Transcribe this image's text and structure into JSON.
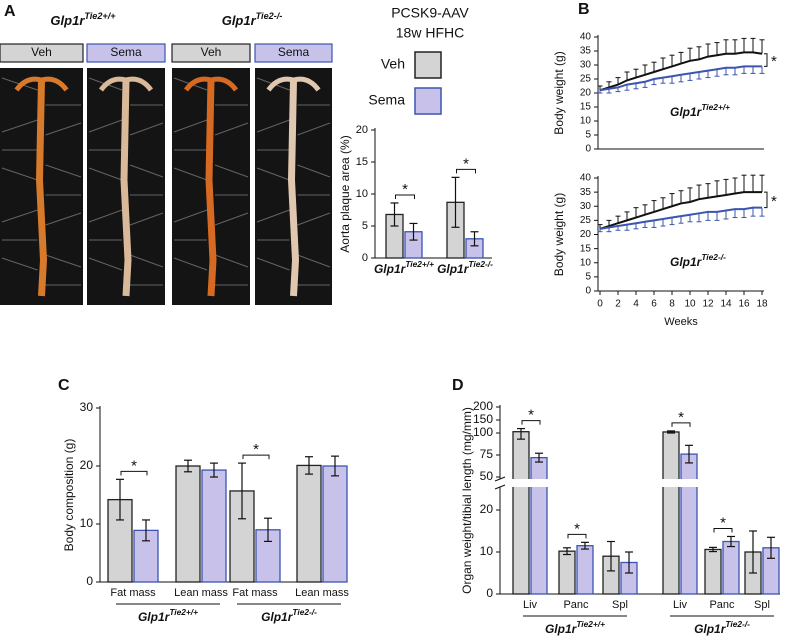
{
  "panel_labels": [
    "A",
    "B",
    "C",
    "D"
  ],
  "genotypes": [
    {
      "base": "Glp1r",
      "sup": "Tie2+/+"
    },
    {
      "base": "Glp1r",
      "sup": "Tie2-/-"
    }
  ],
  "photo_labels": [
    "Veh",
    "Sema",
    "Veh",
    "Sema"
  ],
  "legend_title": [
    "PCSK9-AAV",
    "18w HFHC"
  ],
  "chart_data": [
    {
      "type": "bar",
      "y_label": "Aorta plaque area (%)",
      "ylim": [
        0,
        20
      ],
      "yticks": [
        0,
        5,
        10,
        15,
        20
      ],
      "series": [
        {
          "name": "Veh",
          "color": "#d4d4d4",
          "edge": "#222222",
          "values": [
            6.8,
            8.7
          ],
          "errors": [
            1.8,
            3.9
          ]
        },
        {
          "name": "Sema",
          "color": "#c8c2ea",
          "edge": "#3b55b0",
          "values": [
            4.1,
            3.0
          ],
          "errors": [
            1.3,
            1.1
          ]
        }
      ],
      "significance": [
        "*",
        "*"
      ]
    },
    {
      "type": "line",
      "y_label": "Body weight (g)",
      "ylim": [
        0,
        40
      ],
      "yticks": [
        0,
        5,
        10,
        15,
        20,
        25,
        30,
        35,
        40
      ],
      "xlim": [
        0,
        18
      ],
      "x": [
        0,
        1,
        2,
        3,
        4,
        5,
        6,
        7,
        8,
        9,
        10,
        11,
        12,
        13,
        14,
        15,
        16,
        17,
        18
      ],
      "series": [
        {
          "name": "Veh",
          "color": "#111111",
          "error_direction": "up",
          "values": [
            21,
            22,
            23,
            24.5,
            25.5,
            26.5,
            27.5,
            28.5,
            29.5,
            30.5,
            31.5,
            32,
            33,
            33.5,
            34,
            34,
            34.5,
            34.5,
            34
          ],
          "errors": [
            1.5,
            2,
            2.5,
            3,
            3,
            3.5,
            3.5,
            4,
            4,
            4,
            4.5,
            4.5,
            4.5,
            4.5,
            5,
            5,
            5,
            5,
            5
          ]
        },
        {
          "name": "Sema",
          "color": "#3b55b0",
          "error_direction": "down",
          "values": [
            21,
            21.5,
            22,
            23,
            23.5,
            24,
            25,
            25.5,
            26,
            26.5,
            27,
            27.5,
            28,
            28.5,
            29,
            29,
            29.5,
            29.5,
            29.5
          ],
          "errors": [
            1,
            1.5,
            1.5,
            2,
            2,
            2,
            2,
            2,
            2.5,
            2.5,
            2.5,
            2.5,
            2.5,
            2.5,
            2.5,
            2.5,
            2.5,
            2.5,
            2.5
          ]
        }
      ],
      "significance": "*"
    },
    {
      "type": "line",
      "y_label": "Body weight (g)",
      "x_label": "Weeks",
      "ylim": [
        0,
        40
      ],
      "yticks": [
        0,
        5,
        10,
        15,
        20,
        25,
        30,
        35,
        40
      ],
      "xlim": [
        0,
        18
      ],
      "xticks": [
        0,
        2,
        4,
        6,
        8,
        10,
        12,
        14,
        16,
        18
      ],
      "x": [
        0,
        1,
        2,
        3,
        4,
        5,
        6,
        7,
        8,
        9,
        10,
        11,
        12,
        13,
        14,
        15,
        16,
        17,
        18
      ],
      "series": [
        {
          "name": "Veh",
          "color": "#111111",
          "error_direction": "up",
          "values": [
            22,
            23,
            24,
            25,
            26,
            27,
            28,
            29,
            30,
            31,
            31.5,
            32.5,
            33,
            33.5,
            34,
            34.5,
            35,
            35,
            35
          ],
          "errors": [
            1.5,
            2,
            2.5,
            3,
            3.5,
            3.5,
            4,
            4,
            4.5,
            4.5,
            5,
            5,
            5,
            5.5,
            5.5,
            5.5,
            6,
            6,
            6
          ]
        },
        {
          "name": "Sema",
          "color": "#3b55b0",
          "error_direction": "down",
          "values": [
            22,
            22.5,
            23,
            23.5,
            24,
            24.5,
            25,
            25.5,
            26,
            26.5,
            27,
            27.5,
            28,
            28,
            28.5,
            29,
            29,
            29.5,
            29.5
          ],
          "errors": [
            1,
            1.5,
            1.5,
            2,
            2,
            2,
            2.5,
            2.5,
            2.5,
            2.5,
            2.5,
            3,
            3,
            3,
            3,
            3,
            3,
            3,
            3
          ]
        }
      ],
      "significance": "*"
    },
    {
      "type": "bar",
      "y_label": "Body composition (g)",
      "ylim": [
        0,
        30
      ],
      "yticks": [
        0,
        10,
        20,
        30
      ],
      "categories": [
        "Fat mass",
        "Lean mass",
        "Fat mass",
        "Lean mass"
      ],
      "series": [
        {
          "name": "Veh",
          "color": "#d4d4d4",
          "edge": "#222222",
          "values": [
            14.2,
            20.0,
            15.7,
            20.1
          ],
          "errors": [
            3.5,
            1.0,
            4.8,
            1.5
          ]
        },
        {
          "name": "Sema",
          "color": "#c8c2ea",
          "edge": "#3b55b0",
          "values": [
            8.9,
            19.3,
            9.0,
            20.0
          ],
          "errors": [
            1.8,
            1.2,
            2.0,
            1.7
          ]
        }
      ],
      "significance": [
        "*",
        null,
        "*",
        null
      ]
    },
    {
      "type": "bar",
      "y_label": "Organ weight/tibial length (mg/mm)",
      "ylim": [
        0,
        200
      ],
      "ysegments": [
        [
          0,
          25
        ],
        [
          50,
          100
        ],
        [
          100,
          200
        ]
      ],
      "yticks": [
        0,
        10,
        20,
        50,
        75,
        100,
        150,
        200
      ],
      "categories": [
        "Liv",
        "Panc",
        "Spl",
        "Liv",
        "Panc",
        "Spl"
      ],
      "series": [
        {
          "name": "Veh",
          "color": "#d4d4d4",
          "edge": "#222222",
          "values": [
            105,
            10.2,
            9.0,
            104,
            10.6,
            10.0
          ],
          "errors": [
            12,
            0.8,
            3.5,
            4,
            0.5,
            5.0
          ]
        },
        {
          "name": "Sema",
          "color": "#c8c2ea",
          "edge": "#3b55b0",
          "values": [
            72,
            11.5,
            7.5,
            76,
            12.5,
            11.0
          ],
          "errors": [
            5,
            0.8,
            2.5,
            10,
            1.2,
            2.5
          ]
        }
      ],
      "significance": [
        "*",
        "*",
        null,
        "*",
        "*",
        null
      ]
    }
  ]
}
